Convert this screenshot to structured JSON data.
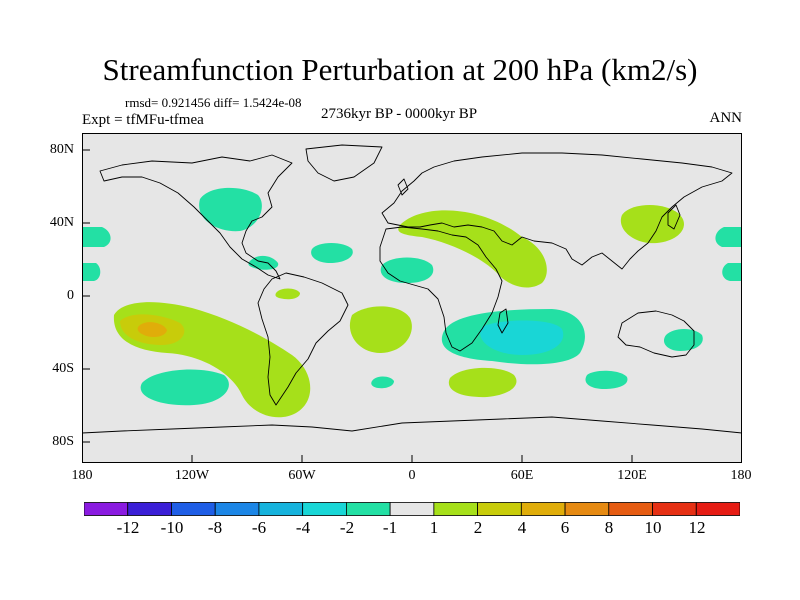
{
  "title": "Streamfunction Perturbation at 200 hPa (km2/s)",
  "stats": "rmsd= 0.921456 diff= 1.5424e-08",
  "experiment": "Expt = tfMFu-tfmea",
  "period": "2736kyr BP - 0000kyr BP",
  "season": "ANN",
  "lat_ticks": [
    "80N",
    "40N",
    "0",
    "40S",
    "80S"
  ],
  "lon_ticks": [
    "180",
    "120W",
    "60W",
    "0",
    "60E",
    "120E",
    "180"
  ],
  "colorbar": {
    "labels": [
      "-12",
      "-10",
      "-8",
      "-6",
      "-4",
      "-2",
      "-1",
      "1",
      "2",
      "4",
      "6",
      "8",
      "10",
      "12"
    ],
    "colors": [
      "#8a1be0",
      "#3b1fd6",
      "#1f5ee6",
      "#1c86e6",
      "#16b3dd",
      "#19d6d6",
      "#23e0a4",
      "#e6e6e6",
      "#a6e01a",
      "#c8cc0a",
      "#e0ad0a",
      "#e68a12",
      "#e65c12",
      "#e63014",
      "#e61c14"
    ]
  },
  "colors": {
    "ocean_neutral": "#e6e6e6",
    "neg_level": "#23e0a4",
    "neg_strong": "#19d6d6",
    "pos_level": "#a6e01a",
    "pos_mid": "#e0ad0a",
    "pos_strong": "#e68a12"
  }
}
